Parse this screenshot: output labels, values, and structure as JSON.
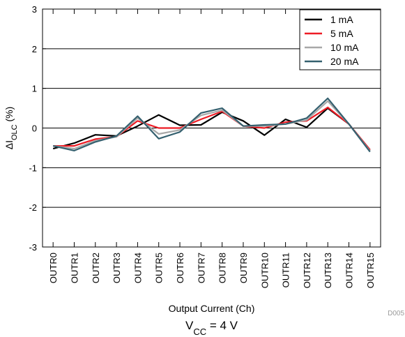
{
  "chart_data": {
    "type": "line",
    "categories": [
      "OUTR0",
      "OUTR1",
      "OUTR2",
      "OUTR3",
      "OUTR4",
      "OUTR5",
      "OUTR6",
      "OUTR7",
      "OUTR8",
      "OUTR9",
      "OUTR10",
      "OUTR11",
      "OUTR12",
      "OUTR13",
      "OUTR14",
      "OUTR15"
    ],
    "series": [
      {
        "name": "1 mA",
        "color": "#000000",
        "values": [
          -0.52,
          -0.38,
          -0.17,
          -0.2,
          0.05,
          0.33,
          0.07,
          0.08,
          0.4,
          0.18,
          -0.18,
          0.22,
          0.02,
          0.5,
          0.1,
          -0.55
        ]
      },
      {
        "name": "5 mA",
        "color": "#ee1c25",
        "values": [
          -0.45,
          -0.45,
          -0.28,
          -0.22,
          0.18,
          0.0,
          0.0,
          0.22,
          0.42,
          0.05,
          0.0,
          0.15,
          0.18,
          0.52,
          0.1,
          -0.55
        ]
      },
      {
        "name": "10 mA",
        "color": "#a8a8a8",
        "values": [
          -0.45,
          -0.52,
          -0.32,
          -0.22,
          0.25,
          -0.15,
          -0.05,
          0.32,
          0.45,
          0.05,
          0.05,
          0.1,
          0.2,
          0.68,
          0.1,
          -0.58
        ]
      },
      {
        "name": "20 mA",
        "color": "#34606f",
        "values": [
          -0.45,
          -0.57,
          -0.35,
          -0.2,
          0.3,
          -0.27,
          -0.1,
          0.38,
          0.5,
          0.05,
          0.08,
          0.1,
          0.25,
          0.75,
          0.1,
          -0.6
        ]
      }
    ],
    "xlabel": "Output Current (Ch)",
    "ylabel": "ΔI",
    "ylabel_sub": "OLC",
    "ylabel_unit": " (%)",
    "ylim": [
      -3,
      3
    ],
    "yticks": [
      -3,
      -2,
      -1,
      0,
      1,
      2,
      3
    ],
    "ytick_labels": [
      "-3",
      "-2",
      "-1",
      "0",
      "1",
      "2",
      "3"
    ],
    "grid": true,
    "legend_position": "top-right",
    "caption_main": "V",
    "caption_sub": "CC",
    "caption_rest": " = 4 V",
    "figure_code": "D005"
  }
}
